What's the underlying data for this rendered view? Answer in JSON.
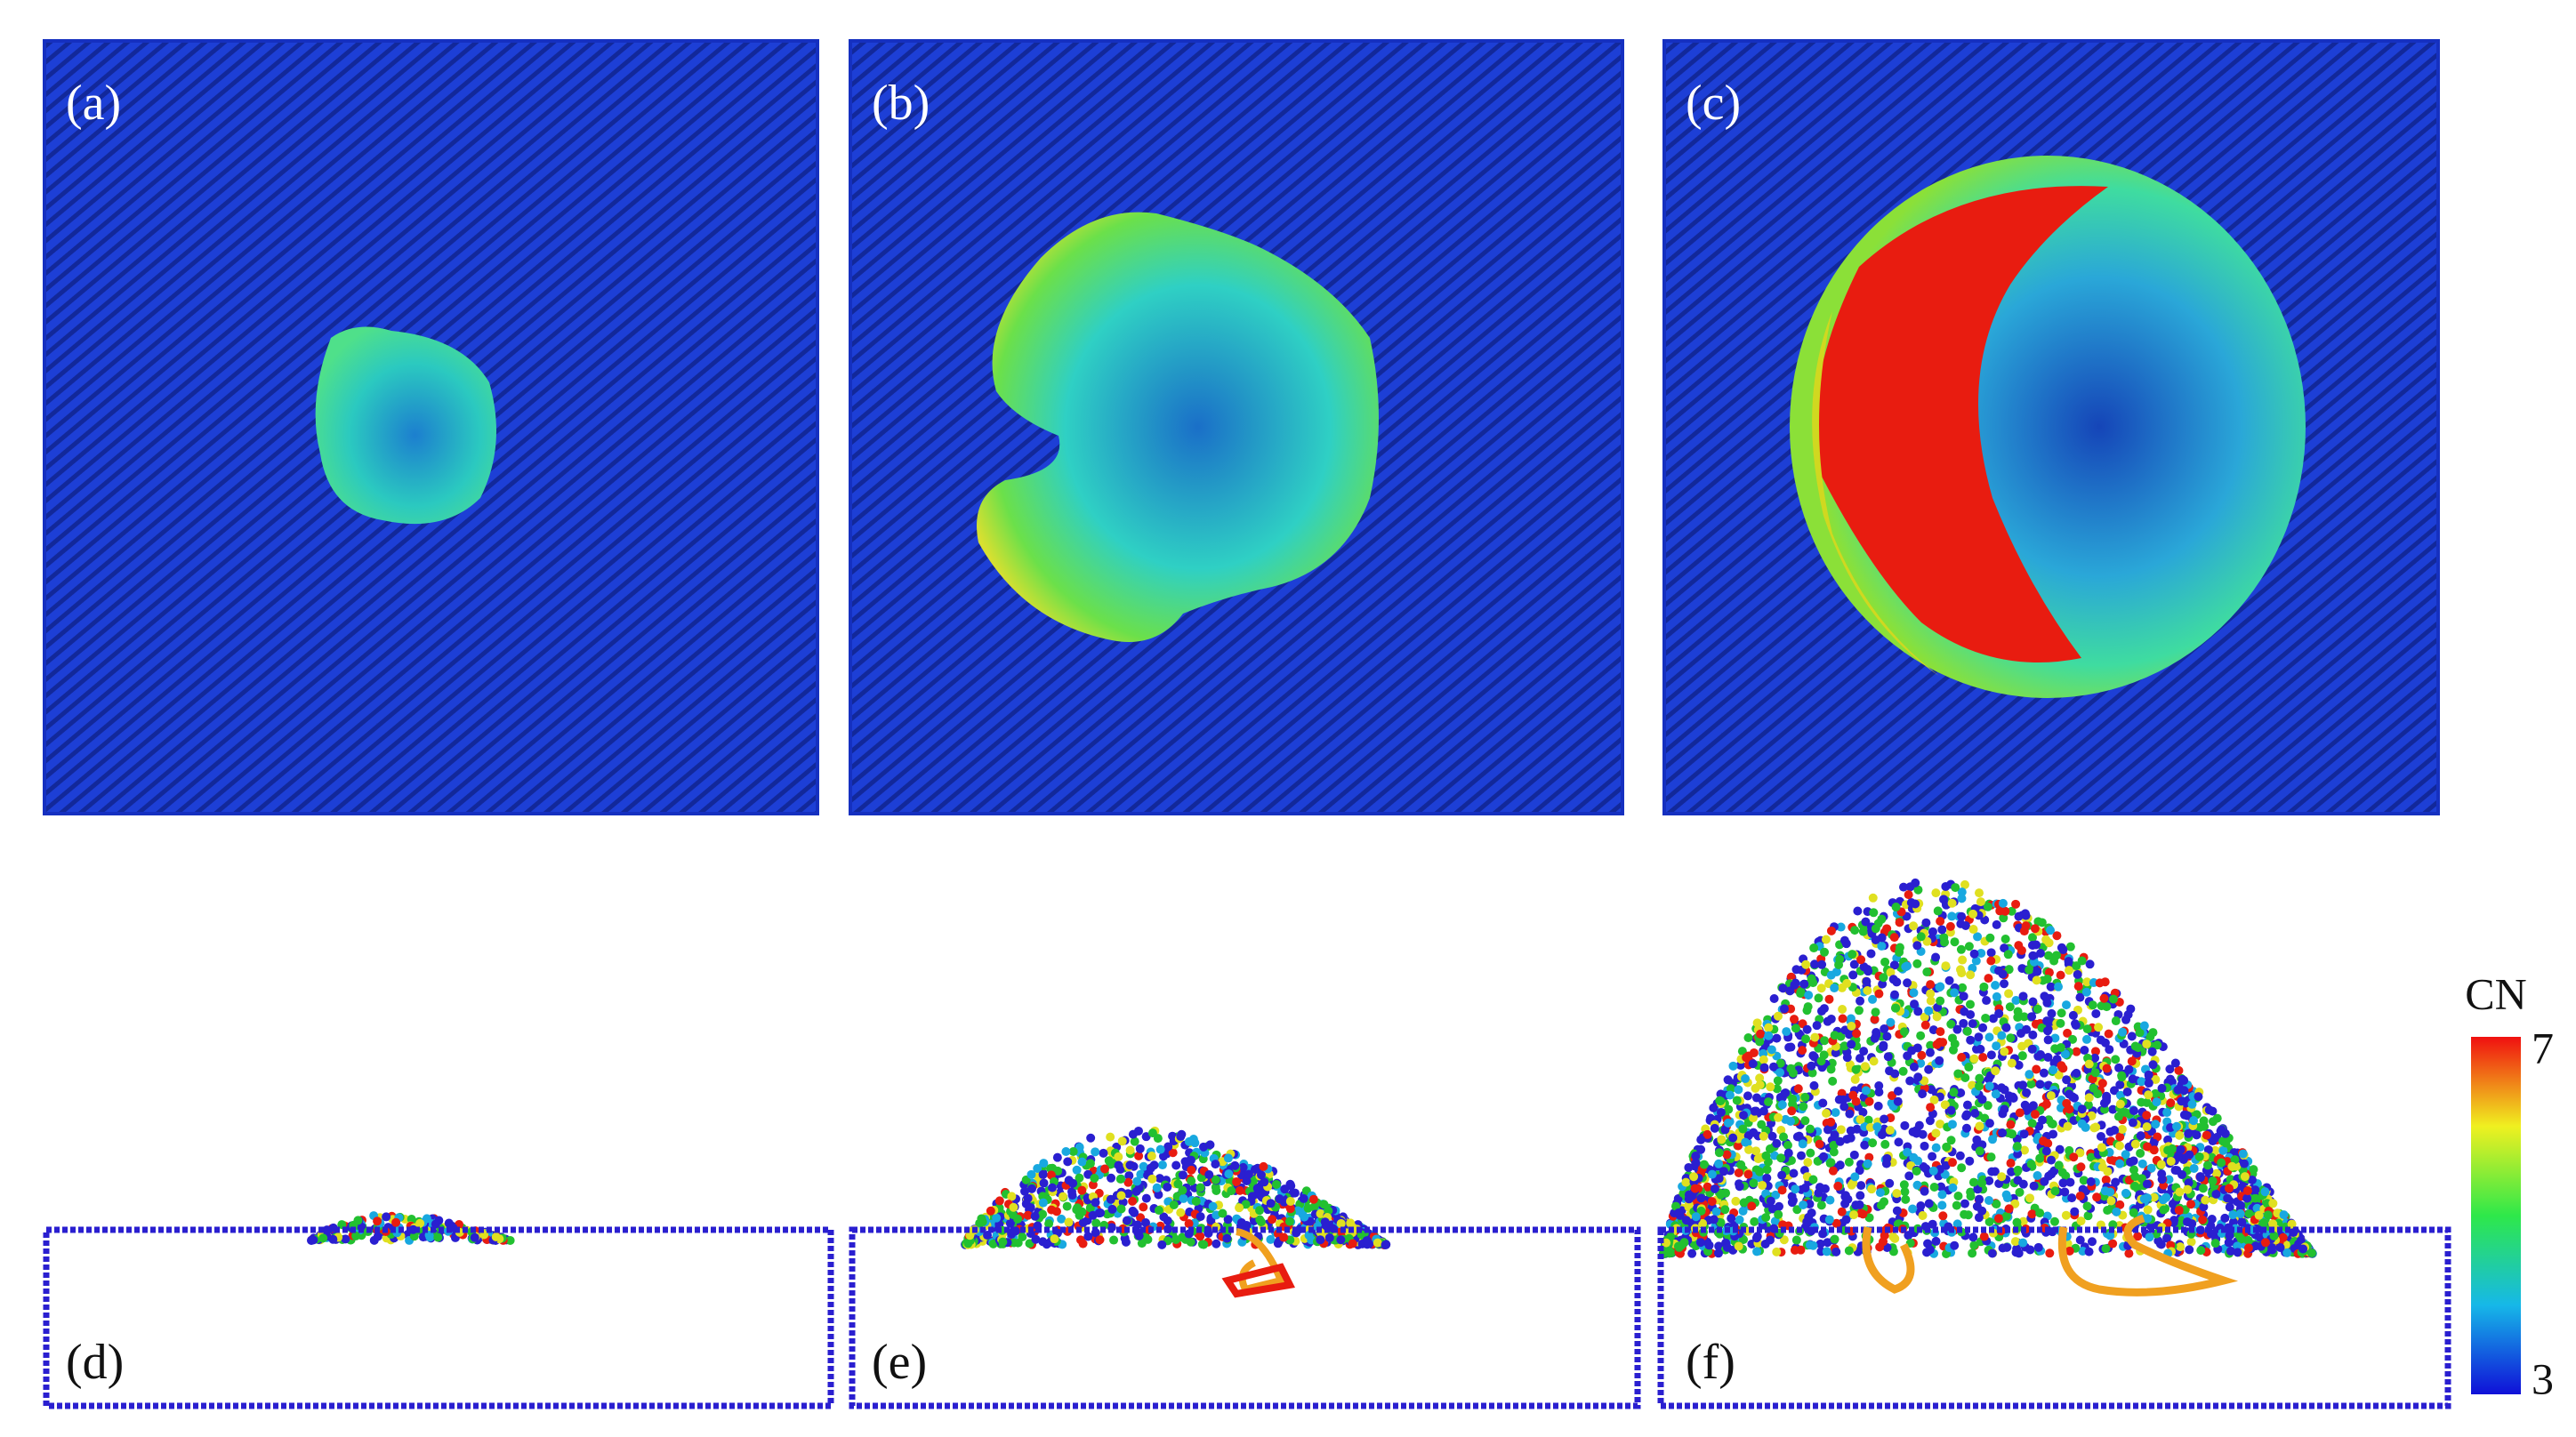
{
  "panels": [
    {
      "label": "(a)"
    },
    {
      "label": "(b)"
    },
    {
      "label": "(c)"
    },
    {
      "label": "(d)"
    },
    {
      "label": "(e)"
    },
    {
      "label": "(f)"
    }
  ],
  "colorbar": {
    "title": "CN",
    "max": 7,
    "min": 3
  }
}
